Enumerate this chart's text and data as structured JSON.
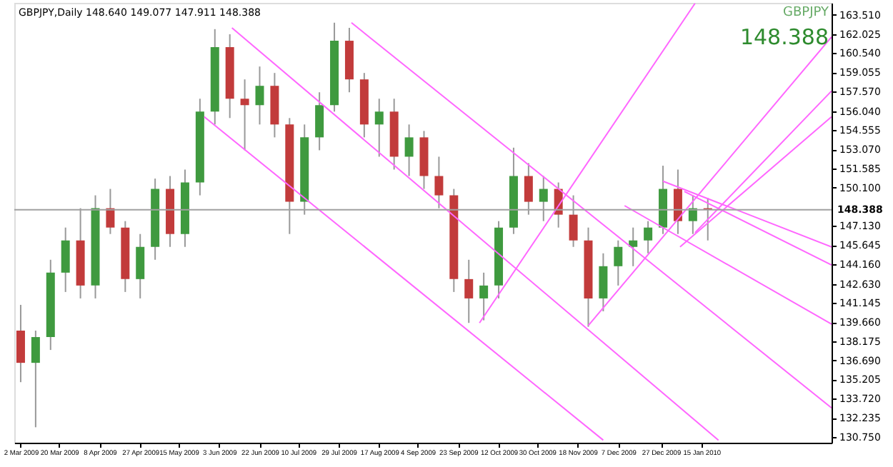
{
  "chart_data": {
    "type": "candlestick",
    "title": "GBPJPY,Daily  148.640 149.077 147.911 148.388",
    "annotations": [
      "GBPJPY",
      "148.388"
    ],
    "x": [
      "2009-03-02",
      "2009-03-09",
      "2009-03-16",
      "2009-03-23",
      "2009-03-30",
      "2009-04-06",
      "2009-04-13",
      "2009-04-20",
      "2009-04-27",
      "2009-05-04",
      "2009-05-11",
      "2009-05-18",
      "2009-05-25",
      "2009-06-01",
      "2009-06-08",
      "2009-06-15",
      "2009-06-22",
      "2009-06-29",
      "2009-07-06",
      "2009-07-13",
      "2009-07-20",
      "2009-07-27",
      "2009-08-03",
      "2009-08-10",
      "2009-08-17",
      "2009-08-24",
      "2009-08-31",
      "2009-09-07",
      "2009-09-14",
      "2009-09-21",
      "2009-09-28",
      "2009-10-05",
      "2009-10-12",
      "2009-10-19",
      "2009-10-26",
      "2009-11-02",
      "2009-11-09",
      "2009-11-16",
      "2009-11-23",
      "2009-11-30",
      "2009-12-07",
      "2009-12-14",
      "2009-12-21",
      "2009-12-28",
      "2010-01-04",
      "2010-01-11",
      "2010-01-18"
    ],
    "ohlc": [
      [
        139.0,
        141.0,
        135.0,
        136.5
      ],
      [
        136.5,
        139.0,
        131.5,
        138.5
      ],
      [
        138.5,
        144.5,
        137.5,
        143.5
      ],
      [
        143.5,
        147.0,
        142.0,
        146.0
      ],
      [
        146.0,
        148.5,
        141.5,
        142.5
      ],
      [
        142.5,
        149.5,
        141.5,
        148.5
      ],
      [
        148.5,
        150.0,
        146.5,
        147.0
      ],
      [
        147.0,
        147.5,
        142.0,
        143.0
      ],
      [
        143.0,
        146.5,
        141.5,
        145.5
      ],
      [
        145.5,
        150.8,
        144.5,
        150.0
      ],
      [
        150.0,
        151.0,
        145.5,
        146.5
      ],
      [
        146.5,
        151.5,
        145.5,
        150.5
      ],
      [
        150.5,
        157.0,
        149.5,
        156.0
      ],
      [
        156.0,
        162.4,
        155.0,
        161.0
      ],
      [
        161.0,
        162.0,
        155.5,
        157.0
      ],
      [
        157.0,
        158.5,
        153.0,
        156.5
      ],
      [
        156.5,
        159.5,
        155.0,
        158.0
      ],
      [
        158.0,
        159.0,
        154.0,
        155.0
      ],
      [
        155.0,
        155.5,
        146.5,
        149.0
      ],
      [
        149.0,
        155.0,
        148.0,
        154.0
      ],
      [
        154.0,
        157.5,
        153.0,
        156.5
      ],
      [
        156.5,
        162.9,
        156.0,
        161.5
      ],
      [
        161.5,
        162.5,
        157.5,
        158.5
      ],
      [
        158.5,
        159.0,
        154.0,
        155.0
      ],
      [
        155.0,
        157.0,
        152.5,
        156.0
      ],
      [
        156.0,
        157.0,
        151.5,
        152.5
      ],
      [
        152.5,
        155.0,
        151.0,
        154.0
      ],
      [
        154.0,
        154.5,
        150.0,
        151.0
      ],
      [
        151.0,
        152.5,
        148.5,
        149.5
      ],
      [
        149.5,
        150.0,
        142.0,
        143.0
      ],
      [
        143.0,
        144.5,
        139.6,
        141.5
      ],
      [
        141.5,
        143.5,
        139.8,
        142.5
      ],
      [
        142.5,
        147.5,
        141.5,
        147.0
      ],
      [
        147.0,
        153.2,
        146.5,
        151.0
      ],
      [
        151.0,
        152.0,
        148.0,
        149.0
      ],
      [
        149.0,
        151.0,
        147.5,
        150.0
      ],
      [
        150.0,
        150.5,
        147.0,
        148.0
      ],
      [
        148.0,
        149.5,
        145.5,
        146.0
      ],
      [
        146.0,
        147.0,
        139.3,
        141.5
      ],
      [
        141.5,
        145.0,
        140.5,
        144.0
      ],
      [
        144.0,
        146.0,
        142.5,
        145.5
      ],
      [
        145.5,
        147.0,
        144.0,
        146.0
      ],
      [
        146.0,
        147.5,
        145.0,
        147.0
      ],
      [
        147.0,
        151.8,
        146.5,
        150.0
      ],
      [
        150.0,
        151.5,
        146.5,
        147.5
      ],
      [
        147.5,
        149.5,
        146.5,
        148.5
      ],
      [
        148.5,
        149.3,
        146.0,
        148.388
      ]
    ],
    "series": [
      {
        "type": "line",
        "color": "#ff66ff",
        "x": [
          "2009-06-09",
          "2010-01-23"
        ],
        "values": [
          162.5,
          130.5
        ]
      },
      {
        "type": "line",
        "color": "#ff66ff",
        "x": [
          "2009-08-04",
          "2010-03-17"
        ],
        "values": [
          162.9,
          133.0
        ]
      },
      {
        "type": "line",
        "color": "#ff66ff",
        "x": [
          "2009-05-27",
          "2009-11-30"
        ],
        "values": [
          155.6,
          130.5
        ]
      },
      {
        "type": "line",
        "color": "#ff66ff",
        "x": [
          "2009-12-28",
          "2010-03-17"
        ],
        "values": [
          150.6,
          145.5
        ]
      },
      {
        "type": "line",
        "color": "#ff66ff",
        "x": [
          "2010-01-07",
          "2010-03-17"
        ],
        "values": [
          149.8,
          144.1
        ]
      },
      {
        "type": "line",
        "color": "#ff66ff",
        "x": [
          "2009-12-10",
          "2010-03-17"
        ],
        "values": [
          148.7,
          139.5
        ]
      },
      {
        "type": "line",
        "color": "#ff66ff",
        "x": [
          "2009-10-03",
          "2010-01-12"
        ],
        "values": [
          139.6,
          164.4
        ]
      },
      {
        "type": "line",
        "color": "#ff66ff",
        "x": [
          "2009-11-23",
          "2010-03-17"
        ],
        "values": [
          139.4,
          161.8
        ]
      },
      {
        "type": "line",
        "color": "#ff66ff",
        "x": [
          "2010-01-12",
          "2010-03-17"
        ],
        "values": [
          146.6,
          157.6
        ]
      },
      {
        "type": "line",
        "color": "#ff66ff",
        "x": [
          "2010-01-05",
          "2010-03-17"
        ],
        "values": [
          145.5,
          155.6
        ]
      }
    ],
    "xlim": [
      "2009-02-27",
      "2010-03-17"
    ],
    "xticks": [
      {
        "value": "2009-03-02",
        "label": "2 Mar 2009"
      },
      {
        "value": "2009-03-20",
        "label": "20 Mar 2009"
      },
      {
        "value": "2009-04-08",
        "label": "8 Apr 2009"
      },
      {
        "value": "2009-04-27",
        "label": "27 Apr 2009"
      },
      {
        "value": "2009-05-15",
        "label": "15 May 2009"
      },
      {
        "value": "2009-06-03",
        "label": "3 Jun 2009"
      },
      {
        "value": "2009-06-22",
        "label": "22 Jun 2009"
      },
      {
        "value": "2009-07-10",
        "label": "10 Jul 2009"
      },
      {
        "value": "2009-07-29",
        "label": "29 Jul 2009"
      },
      {
        "value": "2009-08-17",
        "label": "17 Aug 2009"
      },
      {
        "value": "2009-09-04",
        "label": "4 Sep 2009"
      },
      {
        "value": "2009-09-23",
        "label": "23 Sep 2009"
      },
      {
        "value": "2009-10-12",
        "label": "12 Oct 2009"
      },
      {
        "value": "2009-10-30",
        "label": "30 Oct 2009"
      },
      {
        "value": "2009-11-18",
        "label": "18 Nov 2009"
      },
      {
        "value": "2009-12-07",
        "label": "7 Dec 2009"
      },
      {
        "value": "2009-12-27",
        "label": "27 Dec 2009"
      },
      {
        "value": "2010-01-15",
        "label": "15 Jan 2010"
      }
    ],
    "ylim": [
      130.3,
      164.44
    ],
    "yticks": [
      {
        "value": 130.75,
        "label": "130.750"
      },
      132.235,
      {
        "value": 133.72,
        "label": "133.720"
      },
      135.205,
      {
        "value": 136.69,
        "label": "136.690"
      },
      138.175,
      {
        "value": 139.66,
        "label": "139.660"
      },
      141.145,
      {
        "value": 142.63,
        "label": "142.630"
      },
      {
        "value": 144.16,
        "label": "144.160"
      },
      145.645,
      {
        "value": 147.13,
        "label": "147.130"
      },
      {
        "value": 150.1,
        "label": "150.100"
      },
      151.585,
      {
        "value": 153.07,
        "label": "153.070"
      },
      154.555,
      {
        "value": 156.04,
        "label": "156.040"
      },
      {
        "value": 157.57,
        "label": "157.570"
      },
      159.055,
      {
        "value": 160.54,
        "label": "160.540"
      },
      162.025,
      {
        "value": 163.51,
        "label": "163.510"
      }
    ],
    "ref_lines": [
      {
        "axis": "y",
        "value": 148.388,
        "label": "148.388",
        "color": "#a0a0a0"
      }
    ]
  }
}
